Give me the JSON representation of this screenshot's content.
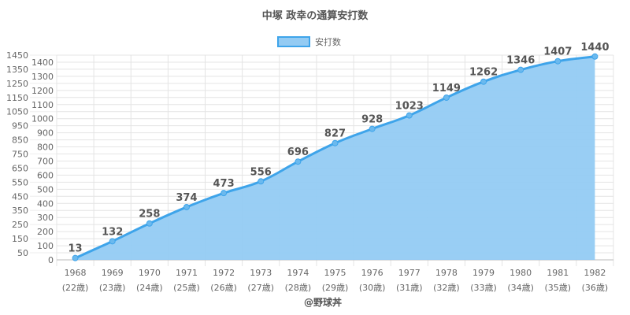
{
  "chart_data": {
    "type": "area",
    "title": "中塚 政幸の通算安打数",
    "legend": {
      "label": "安打数",
      "placement": "top"
    },
    "categories": [
      "1968",
      "1969",
      "1970",
      "1971",
      "1972",
      "1973",
      "1974",
      "1975",
      "1976",
      "1977",
      "1978",
      "1979",
      "1980",
      "1981",
      "1982"
    ],
    "sublabels": [
      "(22歳)",
      "(23歳)",
      "(24歳)",
      "(25歳)",
      "(26歳)",
      "(27歳)",
      "(28歳)",
      "(29歳)",
      "(30歳)",
      "(31歳)",
      "(32歳)",
      "(33歳)",
      "(34歳)",
      "(35歳)",
      "(36歳)"
    ],
    "series": [
      {
        "name": "安打数",
        "values": [
          13,
          132,
          258,
          374,
          473,
          556,
          696,
          827,
          928,
          1023,
          1149,
          1262,
          1346,
          1407,
          1440
        ]
      }
    ],
    "ylim": [
      0,
      1450
    ],
    "ytick_step": 50,
    "grid": true,
    "colors": {
      "line": "#3ea4ea",
      "fill": "#94cbf3",
      "grid": "#e4e4e4",
      "text": "#666666"
    }
  },
  "credit": "@野球丼"
}
